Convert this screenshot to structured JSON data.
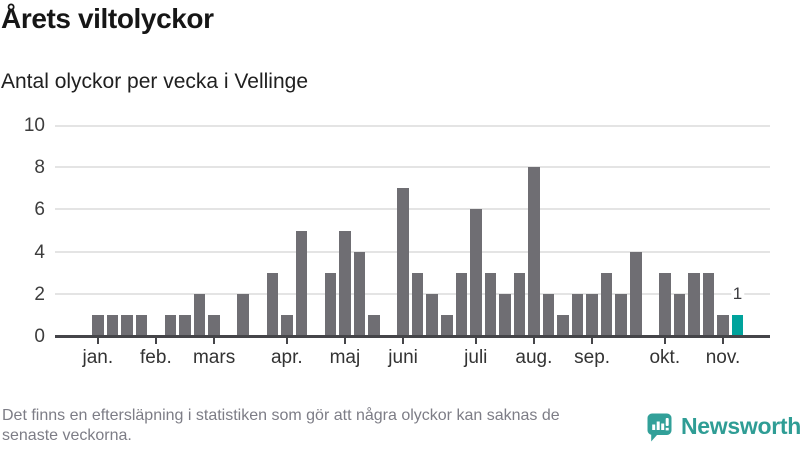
{
  "title": "Årets viltolyckor",
  "subtitle": "Antal olyckor per vecka i Vellinge",
  "footer": {
    "line1": "Det finns en eftersläpning i statistiken som gör att några olyckor kan saknas de",
    "line2": "senaste veckorna."
  },
  "logo": {
    "name": "Newsworthy",
    "color": "#2f9d95"
  },
  "chart_data": {
    "type": "bar",
    "title": "Årets viltolyckor",
    "subtitle": "Antal olyckor per vecka i Vellinge",
    "x_unit": "vecka",
    "values": [
      1,
      1,
      1,
      1,
      0,
      1,
      1,
      2,
      1,
      0,
      2,
      0,
      3,
      1,
      5,
      0,
      3,
      5,
      4,
      1,
      0,
      7,
      3,
      2,
      1,
      3,
      6,
      3,
      2,
      3,
      8,
      2,
      1,
      2,
      2,
      3,
      2,
      4,
      0,
      3,
      2,
      3,
      3,
      1,
      1
    ],
    "month_labels": [
      "jan.",
      "feb.",
      "mars",
      "apr.",
      "maj",
      "juni",
      "juli",
      "aug.",
      "sep.",
      "okt.",
      "nov."
    ],
    "month_start_week_index": [
      0,
      4,
      8,
      13,
      17,
      21,
      26,
      30,
      34,
      39,
      43
    ],
    "ylim": [
      0,
      10
    ],
    "yticks": [
      0,
      2,
      4,
      6,
      8,
      10
    ],
    "grid": true,
    "legend": "none",
    "bar_color": "#6f6e73",
    "highlight_color": "#00a39c",
    "highlight_index": 44,
    "annotation": {
      "text": "1",
      "index": 44
    }
  }
}
